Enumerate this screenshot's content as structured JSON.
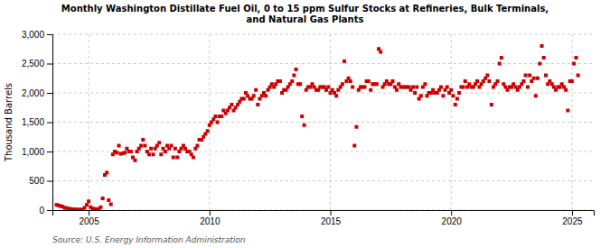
{
  "chart_data": {
    "type": "scatter",
    "title": "Monthly Washington Distillate Fuel Oil, 0 to 15 ppm Sulfur Stocks at Refineries, Bulk Terminals,\nand Natural Gas Plants",
    "y_label": "Thousand Barrels",
    "source": "Source: U.S. Energy Information Administration",
    "color": "#cc0000",
    "marker": "square",
    "grid": true,
    "xlim": [
      2003.5,
      2025.9
    ],
    "xticks": [
      2005,
      2010,
      2015,
      2020,
      2025
    ],
    "ylim": [
      0,
      3000
    ],
    "yticks": [
      0,
      500,
      {
        "value": 1000,
        "label": "1,000"
      },
      {
        "value": 1500,
        "label": "1,500"
      },
      {
        "value": 2000,
        "label": "2,000"
      },
      {
        "value": 2500,
        "label": "2,500"
      },
      {
        "value": 3000,
        "label": "3,000"
      }
    ],
    "x": [
      2003.67,
      2003.75,
      2003.83,
      2003.92,
      2004.0,
      2004.08,
      2004.17,
      2004.25,
      2004.33,
      2004.42,
      2004.5,
      2004.58,
      2004.67,
      2004.75,
      2004.83,
      2004.92,
      2005.0,
      2005.08,
      2005.17,
      2005.25,
      2005.33,
      2005.42,
      2005.5,
      2005.58,
      2005.67,
      2005.75,
      2005.83,
      2005.92,
      2006.0,
      2006.08,
      2006.17,
      2006.25,
      2006.33,
      2006.42,
      2006.5,
      2006.58,
      2006.67,
      2006.75,
      2006.83,
      2006.92,
      2007.0,
      2007.08,
      2007.17,
      2007.25,
      2007.33,
      2007.42,
      2007.5,
      2007.58,
      2007.67,
      2007.75,
      2007.83,
      2007.92,
      2008.0,
      2008.08,
      2008.17,
      2008.25,
      2008.33,
      2008.42,
      2008.5,
      2008.58,
      2008.67,
      2008.75,
      2008.83,
      2008.92,
      2009.0,
      2009.08,
      2009.17,
      2009.25,
      2009.33,
      2009.42,
      2009.5,
      2009.58,
      2009.67,
      2009.75,
      2009.83,
      2009.92,
      2010.0,
      2010.08,
      2010.17,
      2010.25,
      2010.33,
      2010.42,
      2010.5,
      2010.58,
      2010.67,
      2010.75,
      2010.83,
      2010.92,
      2011.0,
      2011.08,
      2011.17,
      2011.25,
      2011.33,
      2011.42,
      2011.5,
      2011.58,
      2011.67,
      2011.75,
      2011.83,
      2011.92,
      2012.0,
      2012.08,
      2012.17,
      2012.25,
      2012.33,
      2012.42,
      2012.5,
      2012.58,
      2012.67,
      2012.75,
      2012.83,
      2012.92,
      2013.0,
      2013.08,
      2013.17,
      2013.25,
      2013.33,
      2013.42,
      2013.5,
      2013.58,
      2013.67,
      2013.75,
      2013.83,
      2013.92,
      2014.0,
      2014.08,
      2014.17,
      2014.25,
      2014.33,
      2014.42,
      2014.5,
      2014.58,
      2014.67,
      2014.75,
      2014.83,
      2014.92,
      2015.0,
      2015.08,
      2015.17,
      2015.25,
      2015.33,
      2015.42,
      2015.5,
      2015.58,
      2015.67,
      2015.75,
      2015.83,
      2015.92,
      2016.0,
      2016.08,
      2016.17,
      2016.25,
      2016.33,
      2016.42,
      2016.5,
      2016.58,
      2016.67,
      2016.75,
      2016.83,
      2016.92,
      2017.0,
      2017.08,
      2017.17,
      2017.25,
      2017.33,
      2017.42,
      2017.5,
      2017.58,
      2017.67,
      2017.75,
      2017.83,
      2017.92,
      2018.0,
      2018.08,
      2018.17,
      2018.25,
      2018.33,
      2018.42,
      2018.5,
      2018.58,
      2018.67,
      2018.75,
      2018.83,
      2018.92,
      2019.0,
      2019.08,
      2019.17,
      2019.25,
      2019.33,
      2019.42,
      2019.5,
      2019.58,
      2019.67,
      2019.75,
      2019.83,
      2019.92,
      2020.0,
      2020.08,
      2020.17,
      2020.25,
      2020.33,
      2020.42,
      2020.5,
      2020.58,
      2020.67,
      2020.75,
      2020.83,
      2020.92,
      2021.0,
      2021.08,
      2021.17,
      2021.25,
      2021.33,
      2021.42,
      2021.5,
      2021.58,
      2021.67,
      2021.75,
      2021.83,
      2021.92,
      2022.0,
      2022.08,
      2022.17,
      2022.25,
      2022.33,
      2022.42,
      2022.5,
      2022.58,
      2022.67,
      2022.75,
      2022.83,
      2022.92,
      2023.0,
      2023.08,
      2023.17,
      2023.25,
      2023.33,
      2023.42,
      2023.5,
      2023.58,
      2023.67,
      2023.75,
      2023.83,
      2023.92,
      2024.0,
      2024.08,
      2024.17,
      2024.25,
      2024.33,
      2024.42,
      2024.5,
      2024.58,
      2024.67,
      2024.75,
      2024.83,
      2024.92,
      2025.0,
      2025.08,
      2025.17,
      2025.25
    ],
    "values": [
      90,
      80,
      70,
      60,
      40,
      35,
      25,
      20,
      15,
      12,
      10,
      8,
      8,
      10,
      40,
      90,
      150,
      50,
      25,
      20,
      15,
      20,
      50,
      200,
      600,
      640,
      170,
      100,
      950,
      1000,
      980,
      1100,
      960,
      970,
      980,
      1050,
      1000,
      1000,
      900,
      850,
      1000,
      1050,
      1100,
      1200,
      1100,
      1000,
      950,
      1050,
      950,
      1050,
      1100,
      1150,
      950,
      1050,
      1000,
      1100,
      1050,
      1100,
      900,
      1050,
      900,
      1000,
      1050,
      1100,
      1050,
      1000,
      1000,
      950,
      900,
      1050,
      1100,
      1200,
      1200,
      1250,
      1300,
      1350,
      1450,
      1500,
      1550,
      1600,
      1500,
      1600,
      1600,
      1700,
      1650,
      1700,
      1750,
      1800,
      1700,
      1750,
      1800,
      1850,
      1900,
      1900,
      2000,
      1950,
      1900,
      1900,
      1950,
      2050,
      1800,
      1900,
      1950,
      2000,
      1950,
      2050,
      2100,
      2150,
      2100,
      2150,
      2200,
      2200,
      2000,
      2050,
      2050,
      2100,
      2150,
      2200,
      2300,
      2400,
      2150,
      2150,
      1600,
      1450,
      2050,
      2100,
      2100,
      2150,
      2100,
      2050,
      2050,
      2100,
      2100,
      2100,
      2050,
      2100,
      2000,
      2050,
      2000,
      1950,
      2050,
      2100,
      2150,
      2540,
      2200,
      2250,
      2200,
      2100,
      1100,
      1420,
      2050,
      2100,
      2100,
      2100,
      2200,
      2200,
      2050,
      2150,
      2150,
      2150,
      2750,
      2700,
      2100,
      2150,
      2200,
      2150,
      2150,
      2200,
      2100,
      2050,
      2150,
      2100,
      2100,
      2100,
      2100,
      2100,
      2050,
      2100,
      2000,
      2100,
      1900,
      1950,
      2100,
      2150,
      1950,
      2000,
      2000,
      2050,
      2000,
      2000,
      2050,
      2100,
      1950,
      2050,
      2100,
      2000,
      2050,
      1950,
      1800,
      1900,
      2000,
      2100,
      2100,
      2200,
      2100,
      2150,
      2100,
      2100,
      2150,
      2200,
      2100,
      2150,
      2200,
      2250,
      2300,
      2200,
      1800,
      2100,
      2150,
      2200,
      2500,
      2600,
      2150,
      2100,
      2050,
      2100,
      2100,
      2150,
      2100,
      2050,
      2100,
      2150,
      2200,
      2300,
      2100,
      2300,
      2200,
      2250,
      1950,
      2250,
      2500,
      2800,
      2600,
      2300,
      2150,
      2200,
      2150,
      2100,
      2050,
      2100,
      2100,
      2150,
      2100,
      2050,
      1700,
      2200,
      2200,
      2500,
      2600,
      2300
    ]
  }
}
